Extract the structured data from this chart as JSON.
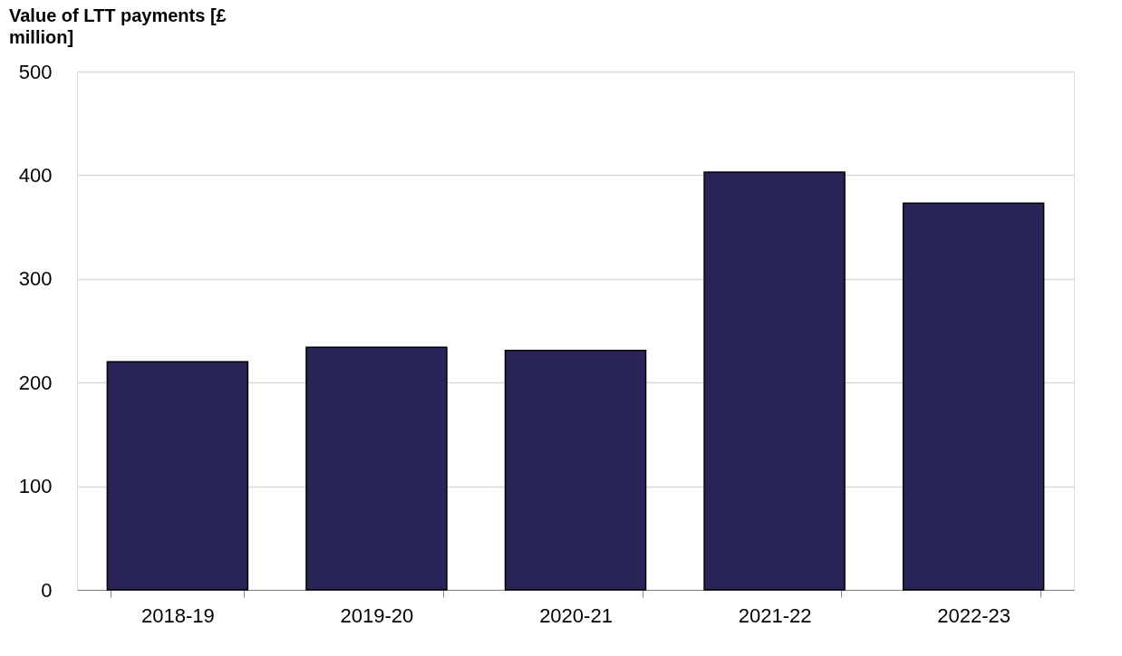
{
  "chart_data": {
    "type": "bar",
    "title": [
      "Value of LTT payments [£",
      "million]"
    ],
    "categories": [
      "2018-19",
      "2019-20",
      "2020-21",
      "2021-22",
      "2022-23"
    ],
    "series": [
      {
        "color": "#282458",
        "values": [
          220,
          234,
          231,
          403,
          373
        ]
      }
    ],
    "ylim": [
      0,
      500
    ],
    "yticks": [
      0,
      100,
      200,
      300,
      400,
      500
    ],
    "grid": "y",
    "legend": false
  }
}
